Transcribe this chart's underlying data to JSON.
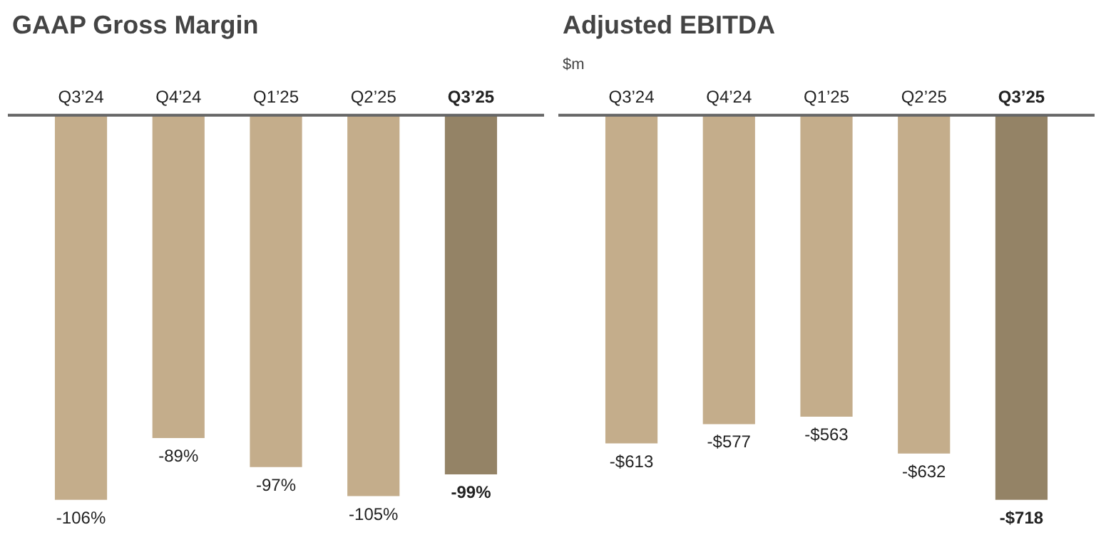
{
  "chart_data": [
    {
      "type": "bar",
      "title": "GAAP Gross Margin",
      "categories": [
        "Q3’24",
        "Q4’24",
        "Q1’25",
        "Q2’25",
        "Q3’25"
      ],
      "values": [
        -106,
        -89,
        -97,
        -105,
        -99
      ],
      "value_labels": [
        "-106%",
        "-89%",
        "-97%",
        "-105%",
        "-99%"
      ],
      "colors": [
        "#c4ad8b",
        "#c4ad8b",
        "#c4ad8b",
        "#c4ad8b",
        "#948366"
      ]
    },
    {
      "type": "bar",
      "title": "Adjusted EBITDA",
      "subtitle": "$m",
      "categories": [
        "Q3’24",
        "Q4’24",
        "Q1’25",
        "Q2’25",
        "Q3’25"
      ],
      "values": [
        -613,
        -577,
        -563,
        -632,
        -718
      ],
      "value_labels": [
        "-$613",
        "-$577",
        "-$563",
        "-$632",
        "-$718"
      ],
      "colors": [
        "#c4ad8b",
        "#c4ad8b",
        "#c4ad8b",
        "#c4ad8b",
        "#948366"
      ]
    }
  ]
}
